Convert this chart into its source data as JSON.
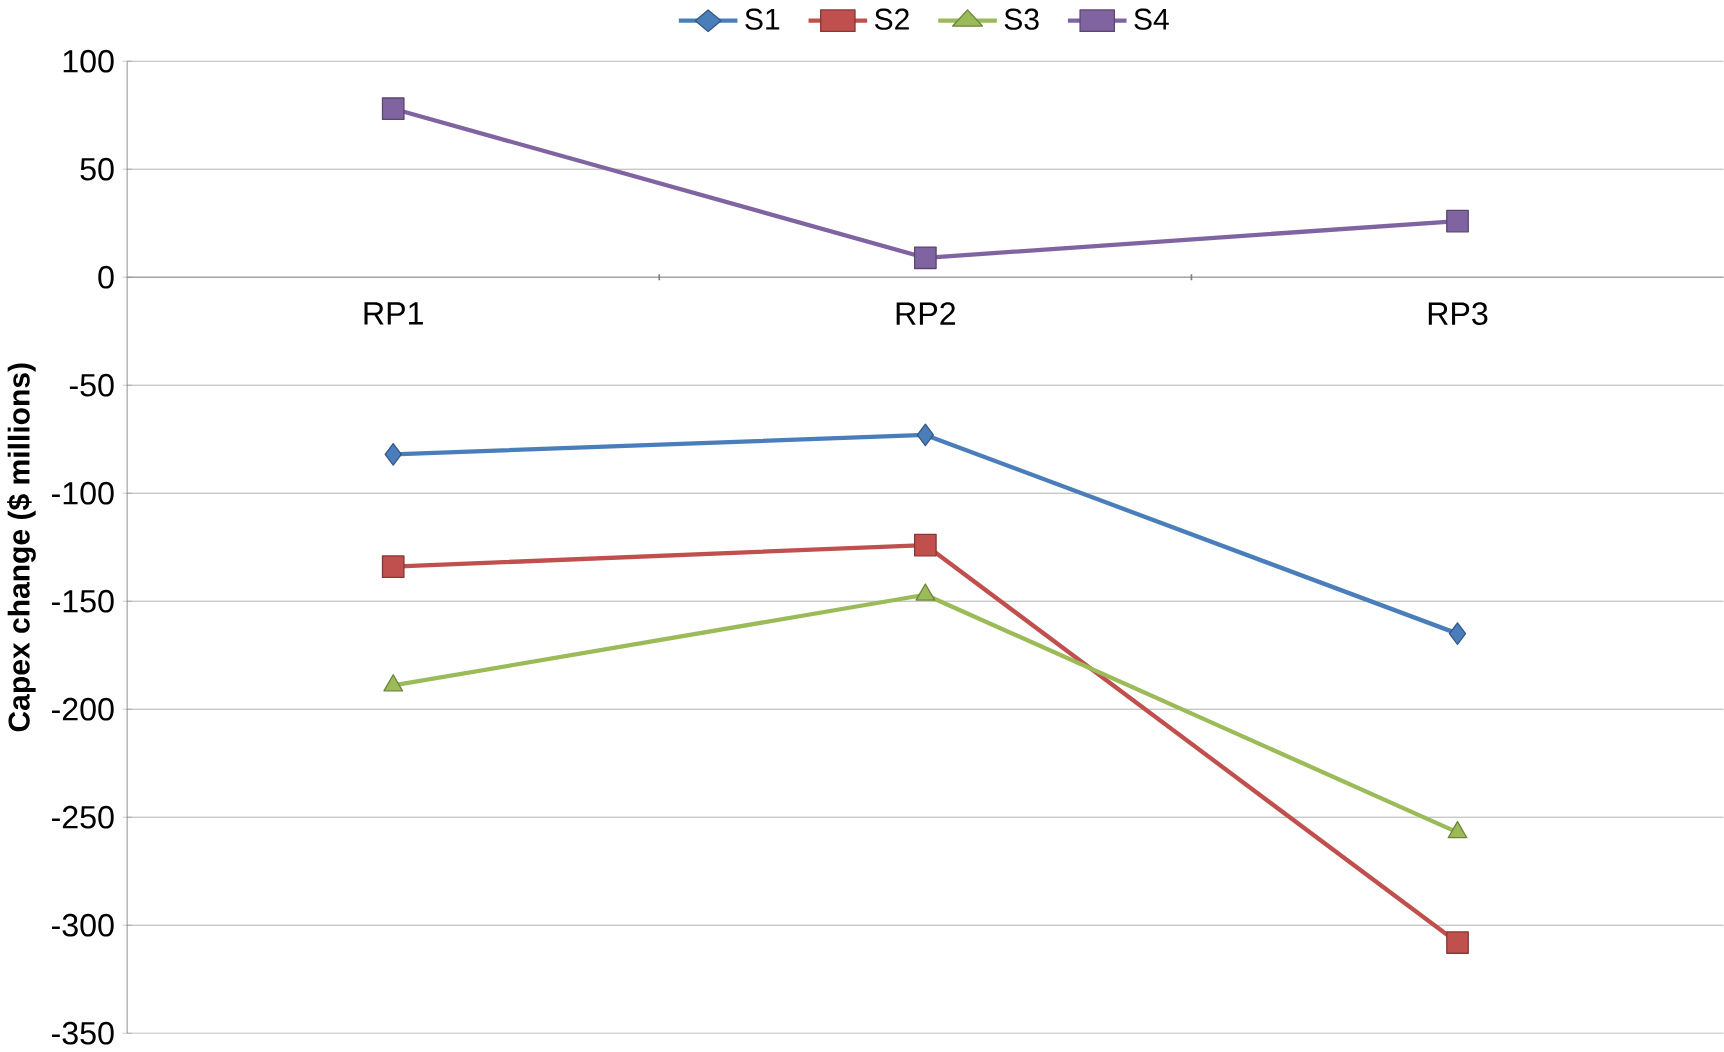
{
  "chart_data": {
    "type": "line",
    "ylabel": "Capex change ($ millions)",
    "categories": [
      "RP1",
      "RP2",
      "RP3"
    ],
    "series": [
      {
        "name": "S1",
        "color": "#4a7ebb",
        "marker": "diamond",
        "values": [
          -82,
          -73,
          -165
        ]
      },
      {
        "name": "S2",
        "color": "#c0504d",
        "marker": "square",
        "values": [
          -134,
          -124,
          -308
        ]
      },
      {
        "name": "S3",
        "color": "#9bbb59",
        "marker": "triangle",
        "values": [
          -189,
          -147,
          -257
        ]
      },
      {
        "name": "S4",
        "color": "#8064a2",
        "marker": "square",
        "values": [
          78,
          9,
          26
        ]
      }
    ],
    "ylim": [
      -350,
      100
    ],
    "yticks": [
      -350,
      -300,
      -250,
      -200,
      -150,
      -100,
      -50,
      0,
      50,
      100
    ],
    "grid": "y",
    "legend": "top"
  }
}
